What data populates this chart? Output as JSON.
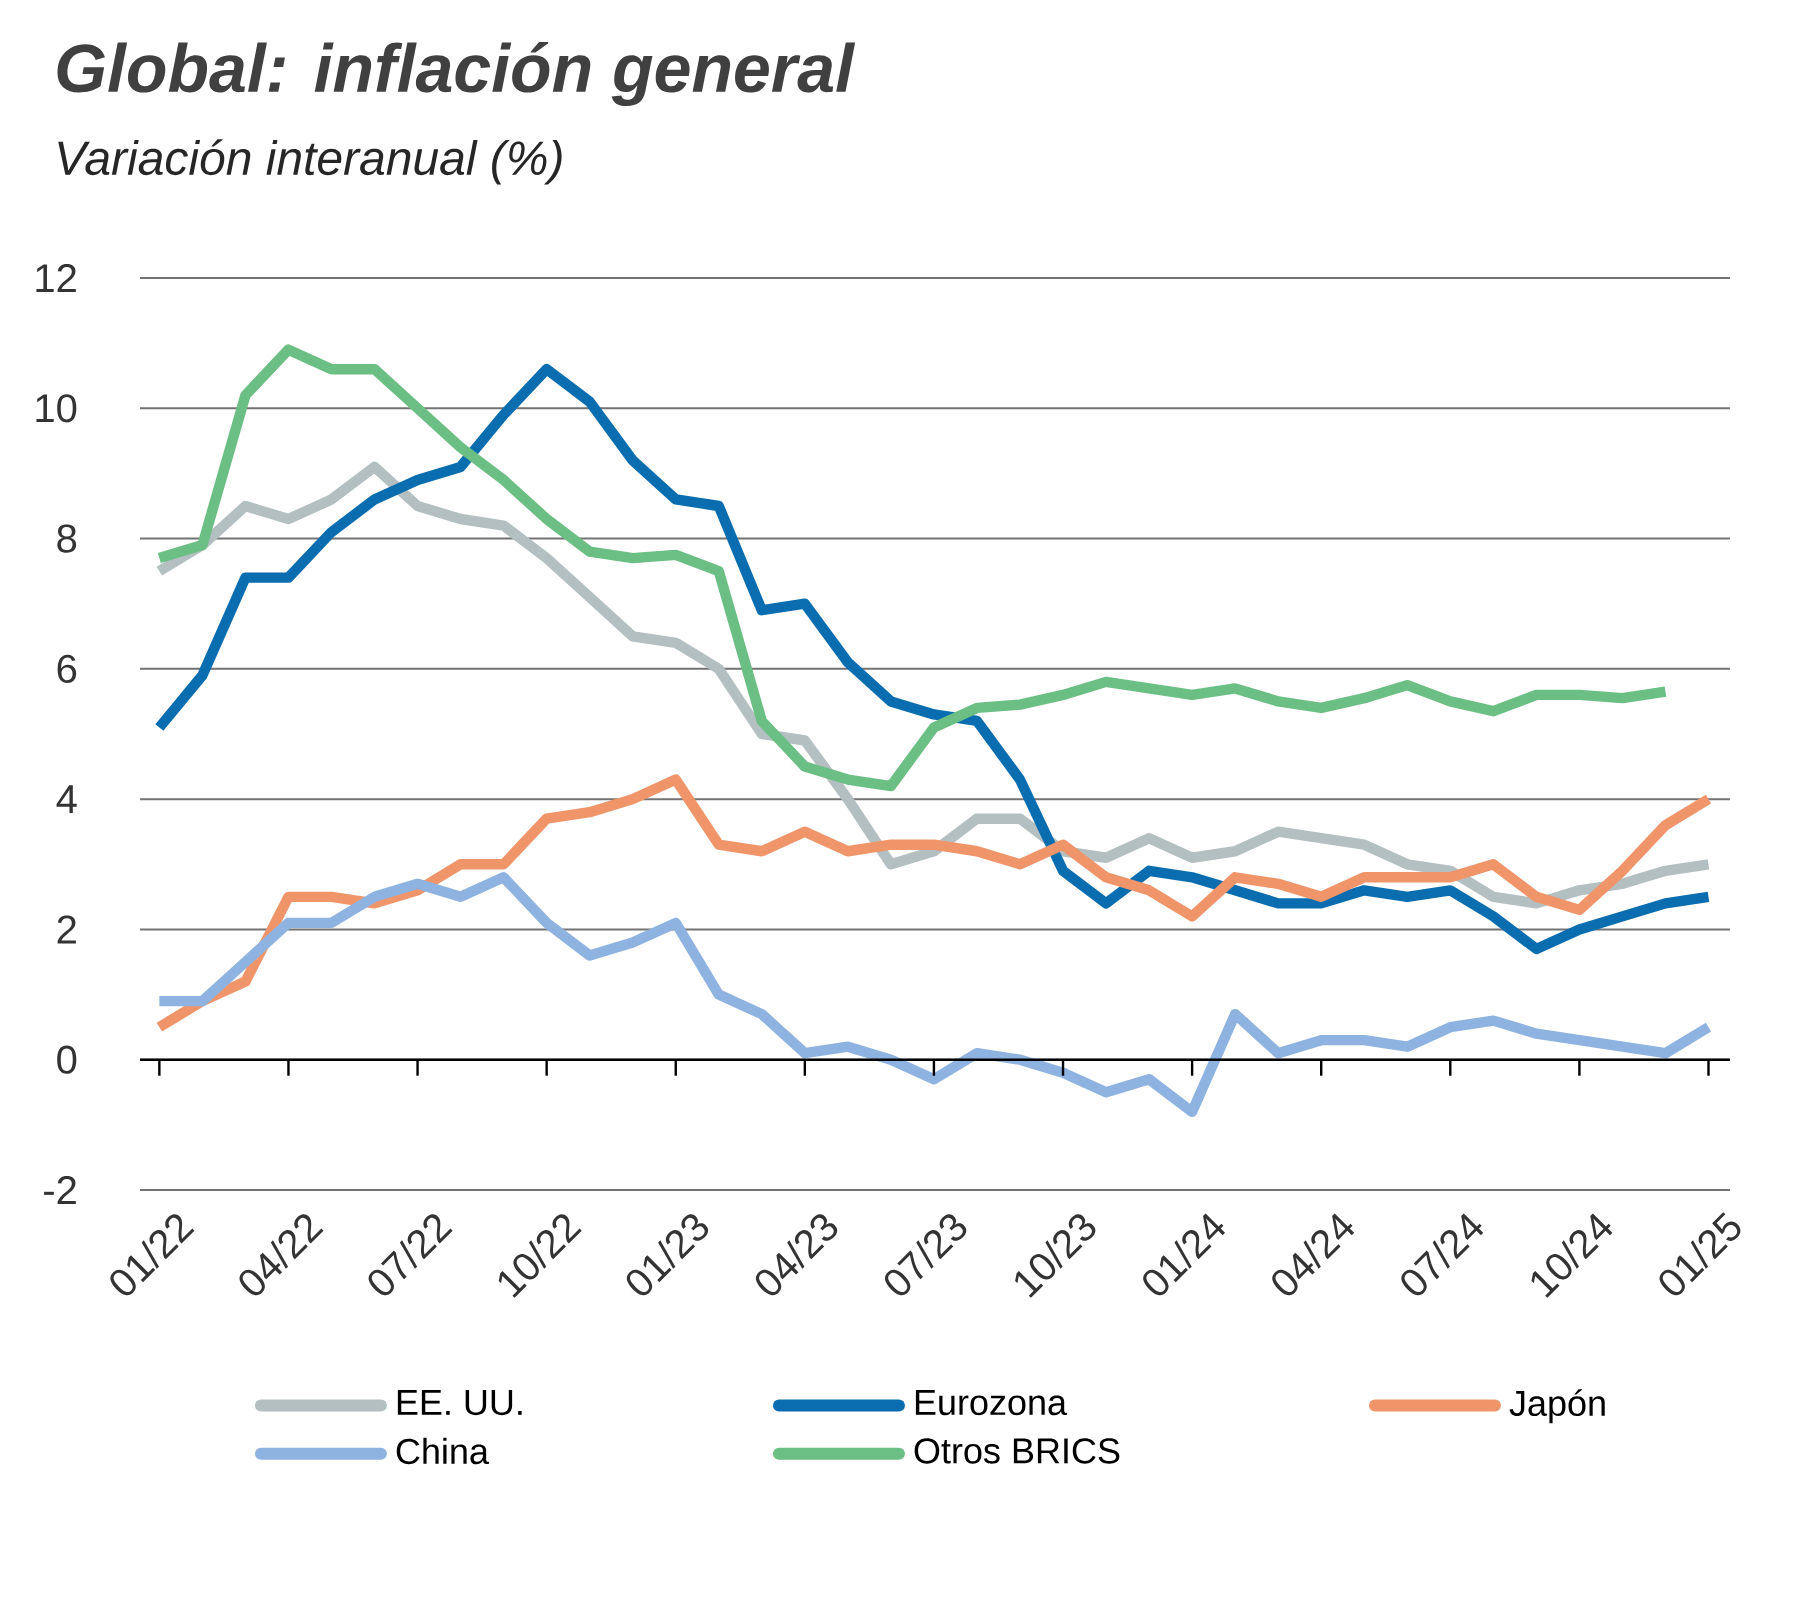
{
  "chart_data": {
    "type": "line",
    "title": "Global: inflación general",
    "subtitle": "Variación interanual (%)",
    "categories": [
      "01/22",
      null,
      null,
      "04/22",
      null,
      null,
      "07/22",
      null,
      null,
      "10/22",
      null,
      null,
      "01/23",
      null,
      null,
      "04/23",
      null,
      null,
      "07/23",
      null,
      null,
      "10/23",
      null,
      null,
      "01/24",
      null,
      null,
      "04/24",
      null,
      null,
      "07/24",
      null,
      null,
      "10/24",
      null,
      null,
      "01/25"
    ],
    "series": [
      {
        "name": "EE. UU.",
        "color": "#b3bfc1",
        "values": [
          7.5,
          7.9,
          8.5,
          8.3,
          8.6,
          9.1,
          8.5,
          8.3,
          8.2,
          7.7,
          7.1,
          6.5,
          6.4,
          6.0,
          5.0,
          4.9,
          4.0,
          3.0,
          3.2,
          3.7,
          3.7,
          3.2,
          3.1,
          3.4,
          3.1,
          3.2,
          3.5,
          3.4,
          3.3,
          3.0,
          2.9,
          2.5,
          2.4,
          2.6,
          2.7,
          2.9,
          3.0
        ]
      },
      {
        "name": "Eurozona",
        "color": "#0a6db0",
        "values": [
          5.1,
          5.9,
          7.4,
          7.4,
          8.1,
          8.6,
          8.9,
          9.1,
          9.9,
          10.6,
          10.1,
          9.2,
          8.6,
          8.5,
          6.9,
          7.0,
          6.1,
          5.5,
          5.3,
          5.2,
          4.3,
          2.9,
          2.4,
          2.9,
          2.8,
          2.6,
          2.4,
          2.4,
          2.6,
          2.5,
          2.6,
          2.2,
          1.7,
          2.0,
          2.2,
          2.4,
          2.5
        ]
      },
      {
        "name": "Japón",
        "color": "#f0956a",
        "values": [
          0.5,
          0.9,
          1.2,
          2.5,
          2.5,
          2.4,
          2.6,
          3.0,
          3.0,
          3.7,
          3.8,
          4.0,
          4.3,
          3.3,
          3.2,
          3.5,
          3.2,
          3.3,
          3.3,
          3.2,
          3.0,
          3.3,
          2.8,
          2.6,
          2.2,
          2.8,
          2.7,
          2.5,
          2.8,
          2.8,
          2.8,
          3.0,
          2.5,
          2.3,
          2.9,
          3.6,
          4.0
        ]
      },
      {
        "name": "China",
        "color": "#8fb3e0",
        "values": [
          0.9,
          0.9,
          1.5,
          2.1,
          2.1,
          2.5,
          2.7,
          2.5,
          2.8,
          2.1,
          1.6,
          1.8,
          2.1,
          1.0,
          0.7,
          0.1,
          0.2,
          0.0,
          -0.3,
          0.1,
          0.0,
          -0.2,
          -0.5,
          -0.3,
          -0.8,
          0.7,
          0.1,
          0.3,
          0.3,
          0.2,
          0.5,
          0.6,
          0.4,
          0.3,
          0.2,
          0.1,
          0.5
        ]
      },
      {
        "name": "Otros BRICS",
        "color": "#6cbf84",
        "values": [
          7.7,
          7.9,
          10.2,
          10.9,
          10.6,
          10.6,
          10.0,
          9.4,
          8.9,
          8.3,
          7.8,
          7.7,
          7.75,
          7.5,
          5.2,
          4.5,
          4.3,
          4.2,
          5.1,
          5.4,
          5.45,
          5.6,
          5.8,
          5.7,
          5.6,
          5.7,
          5.5,
          5.4,
          5.55,
          5.75,
          5.5,
          5.35,
          5.6,
          5.6,
          5.55,
          5.65,
          null
        ]
      }
    ],
    "ylim": [
      -2,
      12
    ],
    "yticks": [
      -2,
      0,
      2,
      4,
      6,
      8,
      10,
      12
    ],
    "grid": "y",
    "legend": "bottom",
    "marker": "none",
    "line_style": "solid"
  }
}
